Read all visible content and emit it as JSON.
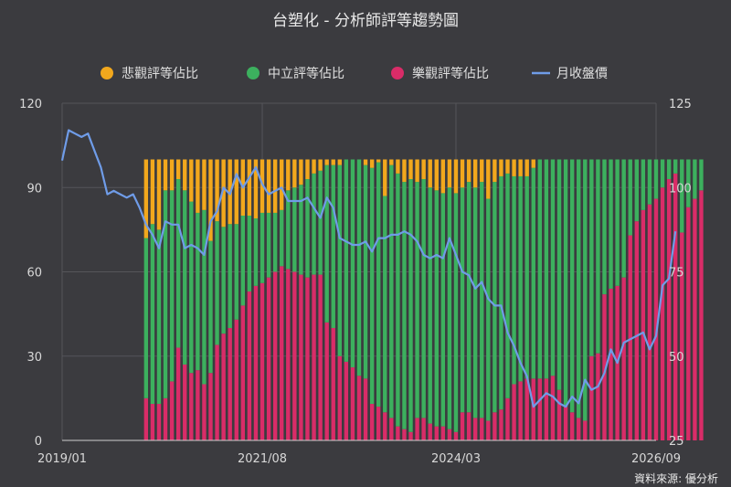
{
  "chart_data": {
    "type": "bar",
    "stacked": true,
    "title": "台塑化 - 分析師評等趨勢圖",
    "source": "資料來源: 優分析",
    "legend_position": "top",
    "grid": true,
    "x_axis": {
      "start": "2019/01",
      "end": "2026/09",
      "tick_labels": [
        "2019/01",
        "2021/08",
        "2024/03",
        "2026/09"
      ]
    },
    "y_left": {
      "min": 0,
      "max": 120,
      "ticks": [
        0,
        30,
        60,
        90,
        120
      ]
    },
    "y_right": {
      "min": 25,
      "max": 125,
      "ticks": [
        25,
        50,
        75,
        100,
        125
      ]
    },
    "series": [
      {
        "name": "悲觀評等佔比",
        "color": "#f2a81d",
        "kind": "bar",
        "axis": "left"
      },
      {
        "name": "中立評等佔比",
        "color": "#3cb05e",
        "kind": "bar",
        "axis": "left"
      },
      {
        "name": "樂觀評等佔比",
        "color": "#d92c68",
        "kind": "bar",
        "axis": "left"
      },
      {
        "name": "月收盤價",
        "color": "#6f9ce8",
        "kind": "line",
        "axis": "right"
      }
    ],
    "bars": {
      "start_month_index": 13,
      "total": 100,
      "optimistic": [
        15,
        13,
        13,
        15,
        21,
        33,
        27,
        24,
        25,
        20,
        24,
        34,
        38,
        40,
        43,
        48,
        53,
        55,
        56,
        58,
        60,
        62,
        61,
        60,
        59,
        58,
        59,
        59,
        42,
        40,
        30,
        28,
        26,
        23,
        22,
        13,
        12,
        10,
        8,
        5,
        4,
        3,
        8,
        8,
        6,
        5,
        5,
        4,
        3,
        10,
        10,
        8,
        8,
        7,
        10,
        11,
        15,
        20,
        21,
        22,
        22,
        22,
        22,
        23,
        18,
        12,
        10,
        8,
        7,
        30,
        31,
        52,
        54,
        55,
        58,
        73,
        78,
        82,
        84,
        86,
        90,
        93,
        95,
        74,
        83,
        86,
        89
      ],
      "neutral": [
        57,
        64,
        62,
        74,
        68,
        60,
        62,
        61,
        56,
        62,
        47,
        44,
        38,
        37,
        34,
        32,
        27,
        24,
        25,
        23,
        21,
        20,
        28,
        30,
        32,
        35,
        36,
        37,
        56,
        58,
        68,
        72,
        74,
        77,
        76,
        84,
        87,
        77,
        90,
        90,
        88,
        90,
        84,
        85,
        84,
        84,
        83,
        86,
        85,
        80,
        82,
        82,
        84,
        79,
        82,
        83,
        80,
        74,
        73,
        72,
        75,
        78,
        78,
        77,
        82,
        88,
        90,
        92,
        93,
        70,
        69,
        48,
        46,
        45,
        42,
        27,
        22,
        18,
        16,
        14,
        10,
        7,
        5,
        26,
        17,
        14,
        11
      ],
      "pessimistic": [
        28,
        23,
        25,
        11,
        11,
        7,
        11,
        15,
        19,
        18,
        29,
        22,
        24,
        23,
        23,
        20,
        20,
        21,
        19,
        19,
        19,
        18,
        11,
        10,
        9,
        7,
        5,
        4,
        2,
        2,
        2,
        0,
        0,
        0,
        2,
        3,
        1,
        13,
        2,
        5,
        8,
        7,
        8,
        7,
        10,
        11,
        12,
        10,
        12,
        10,
        8,
        10,
        8,
        14,
        8,
        6,
        5,
        6,
        6,
        6,
        3,
        0,
        0,
        0,
        0,
        0,
        0,
        0,
        0,
        0,
        0,
        0,
        0,
        0,
        0,
        0,
        0,
        0,
        0,
        0,
        0,
        0,
        0,
        0,
        0,
        0,
        0
      ]
    },
    "price": [
      108,
      117,
      116,
      115,
      116,
      111,
      106,
      98,
      99,
      98,
      97,
      98,
      94,
      89,
      86,
      82,
      90,
      89,
      89,
      82,
      83,
      82,
      80,
      90,
      93,
      100,
      98,
      104,
      100,
      103,
      106,
      101,
      98,
      99,
      100,
      96,
      96,
      96,
      97,
      94,
      91,
      97,
      94,
      85,
      84,
      83,
      83,
      84,
      81,
      85,
      85,
      86,
      86,
      87,
      86,
      84,
      80,
      79,
      80,
      79,
      85,
      80,
      75,
      74,
      70,
      72,
      67,
      65,
      65,
      57,
      53,
      48,
      44,
      35,
      37,
      39,
      38,
      36,
      35,
      38,
      36,
      43,
      40,
      41,
      45,
      52,
      48,
      54,
      55,
      56,
      57,
      52,
      56,
      71,
      73,
      87
    ]
  }
}
